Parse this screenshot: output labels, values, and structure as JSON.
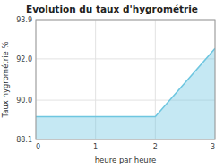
{
  "chart_data": {
    "type": "area",
    "title": "Evolution du taux d'hygrométrie",
    "x_label": "heure par heure",
    "y_label": "Taux hygrométrie %",
    "x": [
      0,
      1,
      2,
      3
    ],
    "values": [
      89.2,
      89.2,
      89.2,
      92.5
    ],
    "color": "#6ec6e0",
    "xlim": [
      0,
      3
    ],
    "ylim": [
      88.1,
      93.9
    ],
    "xticks": [
      0,
      1,
      2,
      3
    ],
    "yticks": [
      88.1,
      {
        "value": 90,
        "label": "90.0"
      },
      {
        "value": 92,
        "label": "92.0"
      },
      93.9
    ],
    "grid": true
  }
}
